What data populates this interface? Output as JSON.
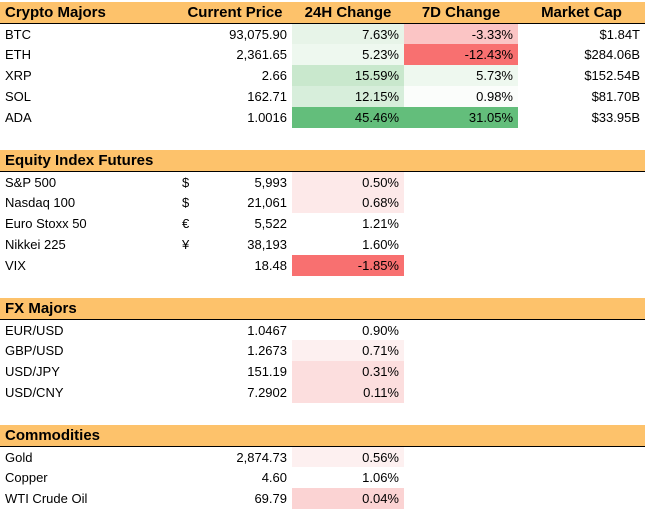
{
  "sections": [
    {
      "title": "Crypto Majors",
      "headers": [
        "Current Price",
        "24H Change",
        "7D Change",
        "Market Cap"
      ],
      "rows": [
        {
          "name": "BTC",
          "price": "93,075.90",
          "chg24": "7.63%",
          "chg7d": "-3.33%",
          "mcap": "$1.84T",
          "bg24": "#e7f4e8",
          "bg7d": "#fbc5c5"
        },
        {
          "name": "ETH",
          "price": "2,361.65",
          "chg24": "5.23%",
          "chg7d": "-12.43%",
          "mcap": "$284.06B",
          "bg24": "#eef8ef",
          "bg7d": "#f87070"
        },
        {
          "name": "XRP",
          "price": "2.66",
          "chg24": "15.59%",
          "chg7d": "5.73%",
          "mcap": "$152.54B",
          "bg24": "#c9e8cd",
          "bg7d": "#eef8ef"
        },
        {
          "name": "SOL",
          "price": "162.71",
          "chg24": "12.15%",
          "chg7d": "0.98%",
          "mcap": "$81.70B",
          "bg24": "#d7eedb",
          "bg7d": "#fbfdfb"
        },
        {
          "name": "ADA",
          "price": "1.0016",
          "chg24": "45.46%",
          "chg7d": "31.05%",
          "mcap": "$33.95B",
          "bg24": "#63be7b",
          "bg7d": "#63be7b"
        }
      ]
    },
    {
      "title": "Equity Index Futures",
      "rows": [
        {
          "name": "S&P 500",
          "cur": "$",
          "price": "5,993",
          "chg24": "0.50%",
          "bg24": "#fde9e9"
        },
        {
          "name": "Nasdaq 100",
          "cur": "$",
          "price": "21,061",
          "chg24": "0.68%",
          "bg24": "#fde9e9"
        },
        {
          "name": "Euro Stoxx 50",
          "cur": "€",
          "price": "5,522",
          "chg24": "1.21%",
          "bg24": "#ffffff"
        },
        {
          "name": "Nikkei 225",
          "cur": "¥",
          "price": "38,193",
          "chg24": "1.60%",
          "bg24": "#ffffff"
        },
        {
          "name": "VIX",
          "cur": "",
          "price": "18.48",
          "chg24": "-1.85%",
          "bg24": "#f87070"
        }
      ]
    },
    {
      "title": "FX Majors",
      "rows": [
        {
          "name": "EUR/USD",
          "price": "1.0467",
          "chg24": "0.90%",
          "bg24": "#ffffff"
        },
        {
          "name": "GBP/USD",
          "price": "1.2673",
          "chg24": "0.71%",
          "bg24": "#fdf0f0"
        },
        {
          "name": "USD/JPY",
          "price": "151.19",
          "chg24": "0.31%",
          "bg24": "#fcdede"
        },
        {
          "name": "USD/CNY",
          "price": "7.2902",
          "chg24": "0.11%",
          "bg24": "#fcdede"
        }
      ]
    },
    {
      "title": "Commodities",
      "rows": [
        {
          "name": "Gold",
          "price": "2,874.73",
          "chg24": "0.56%",
          "bg24": "#fdf0f0"
        },
        {
          "name": "Copper",
          "price": "4.60",
          "chg24": "1.06%",
          "bg24": "#ffffff"
        },
        {
          "name": "WTI Crude Oil",
          "price": "69.79",
          "chg24": "0.04%",
          "bg24": "#fbd3d3"
        }
      ]
    }
  ]
}
